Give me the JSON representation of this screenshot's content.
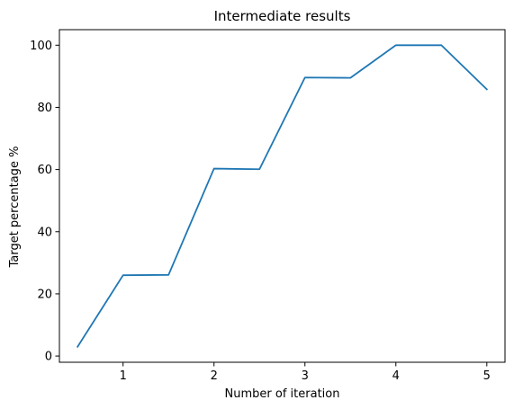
{
  "chart_data": {
    "type": "line",
    "title": "Intermediate results",
    "xlabel": "Number of iteration",
    "ylabel": "Target percentage %",
    "xlim": [
      0.3,
      5.2
    ],
    "ylim": [
      -2,
      105
    ],
    "xticks": [
      1,
      2,
      3,
      4,
      5
    ],
    "yticks": [
      0,
      20,
      40,
      60,
      80,
      100
    ],
    "grid": false,
    "series": [
      {
        "color": "#1f77b4",
        "x": [
          0.5,
          1,
          1.5,
          2,
          2.5,
          3,
          3.5,
          4,
          4.5,
          5
        ],
        "y": [
          3,
          26,
          26.1,
          60.3,
          60.1,
          89.6,
          89.5,
          100,
          100,
          85.8
        ]
      }
    ]
  }
}
